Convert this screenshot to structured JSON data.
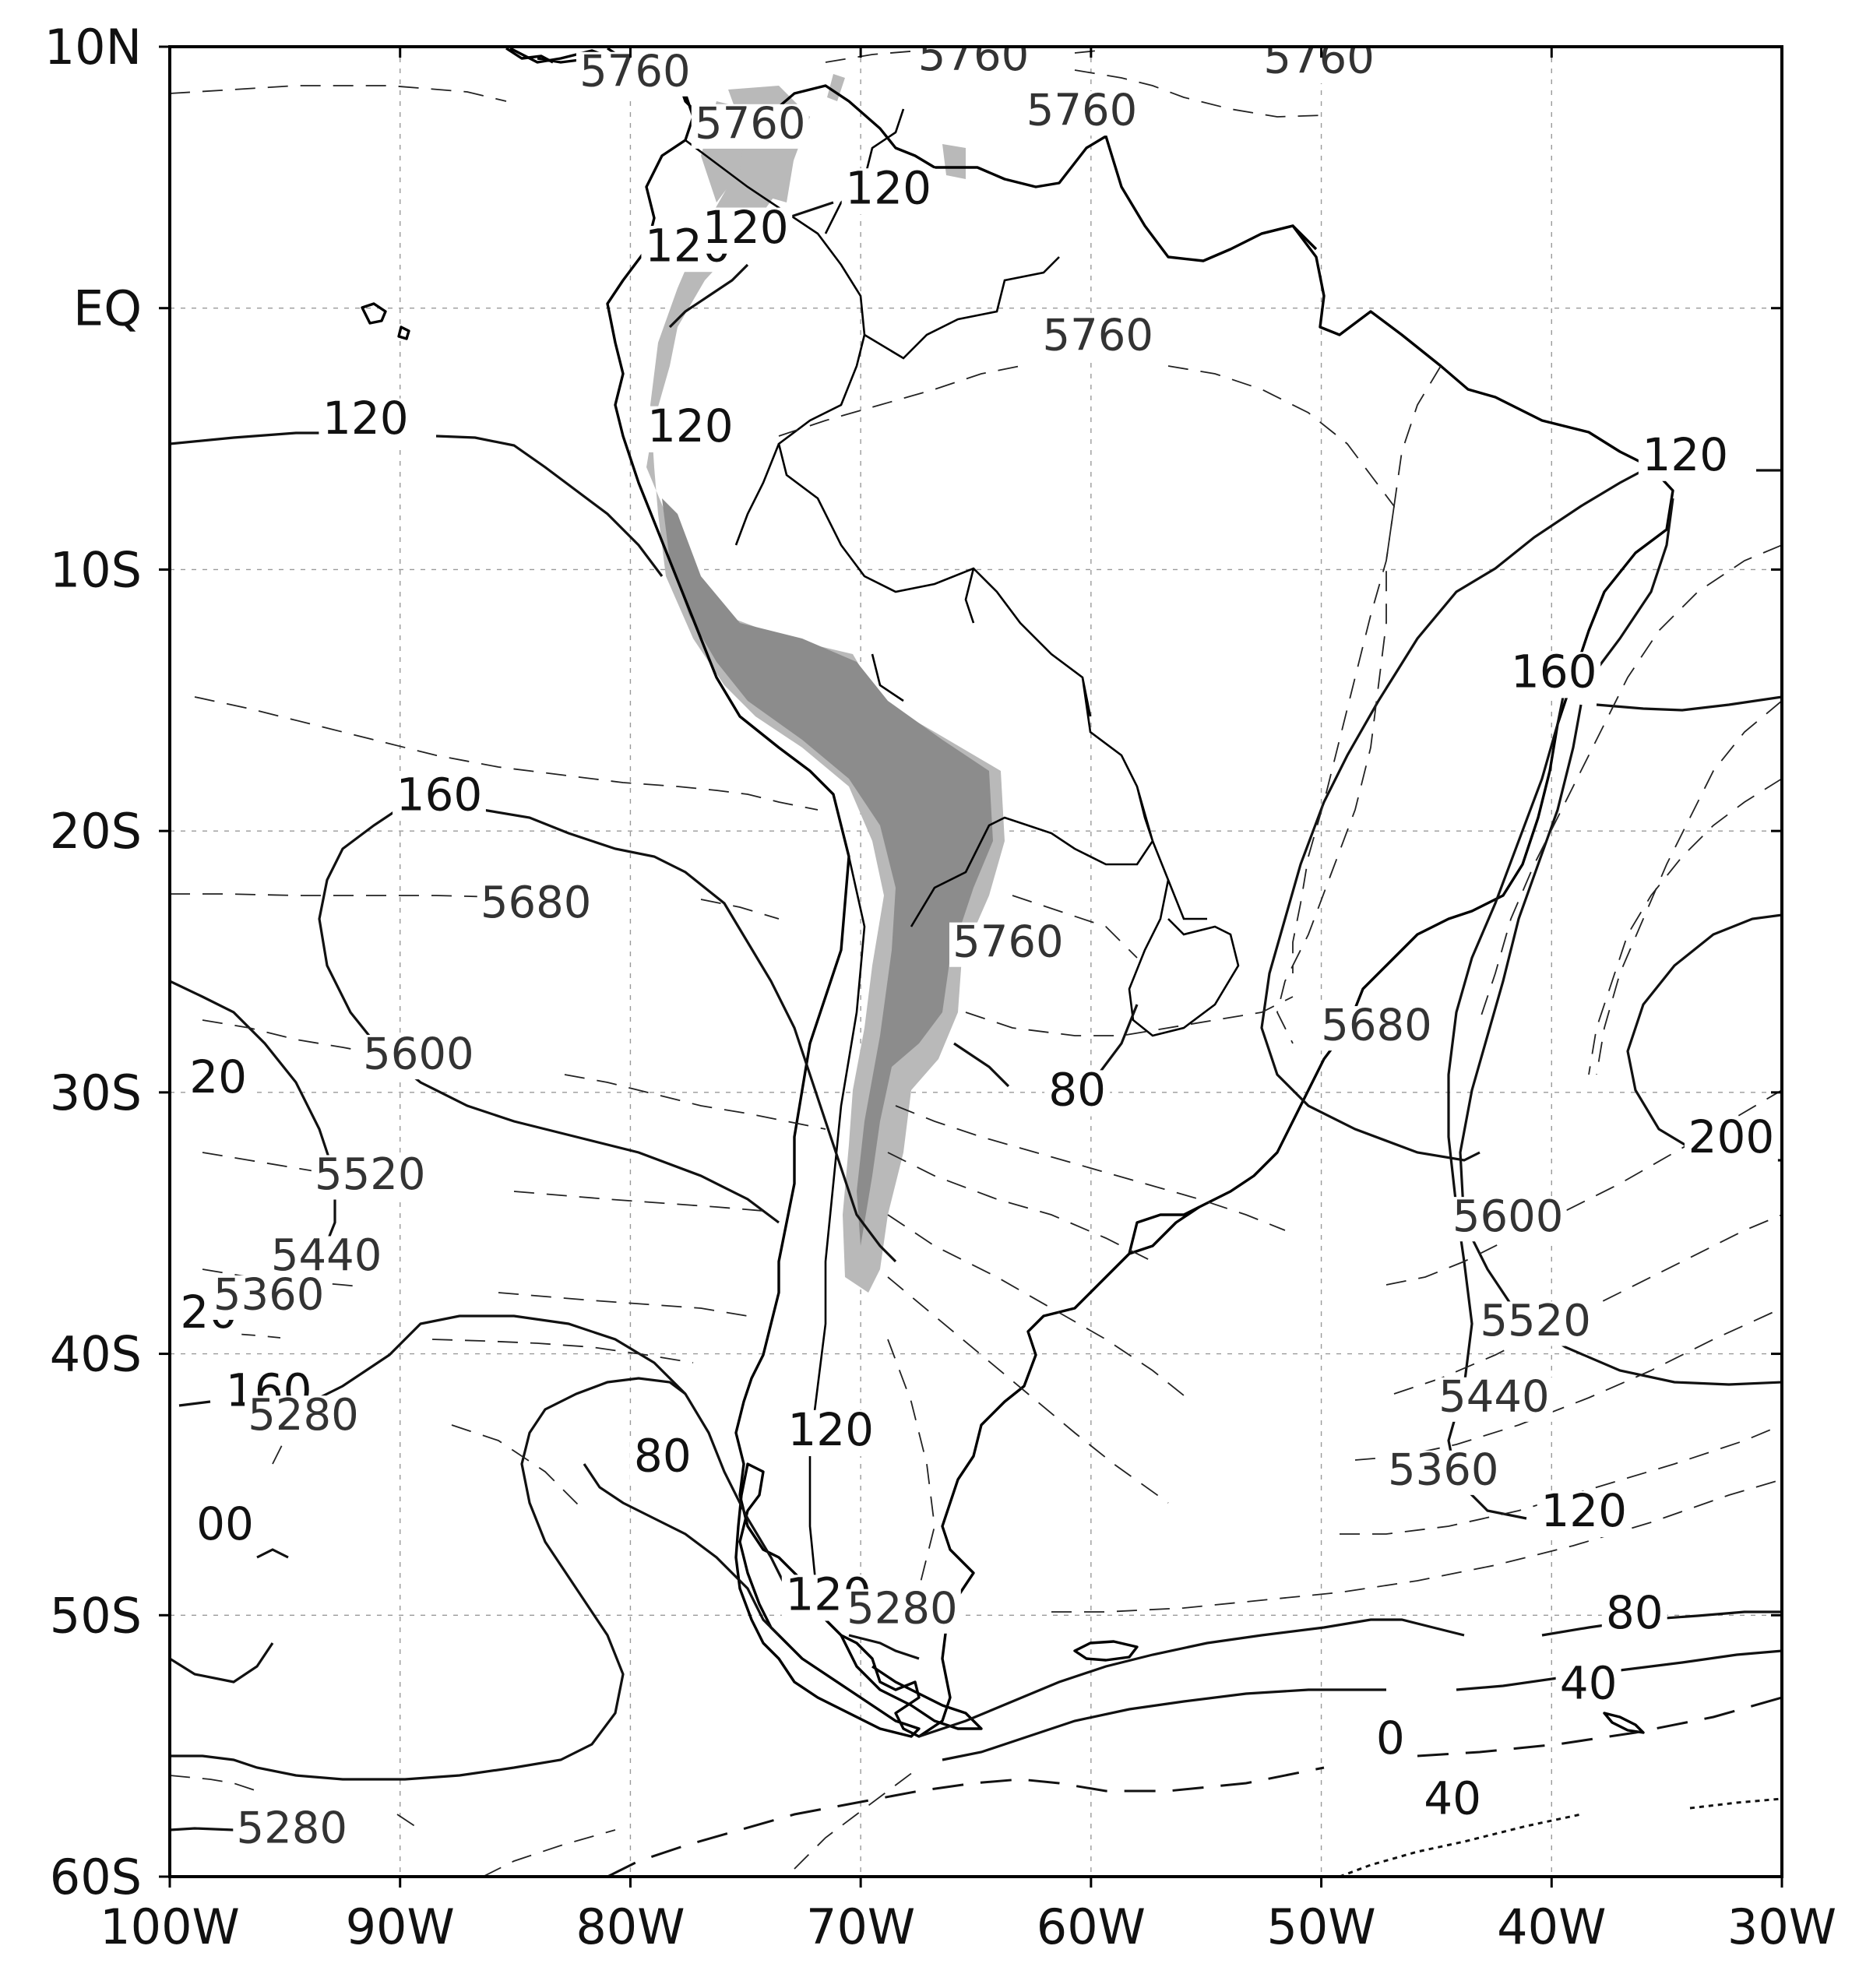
{
  "map": {
    "lon_ticks": [
      "100W",
      "90W",
      "80W",
      "70W",
      "60W",
      "50W",
      "40W",
      "30W"
    ],
    "lat_ticks": [
      "10N",
      "EQ",
      "10S",
      "20S",
      "30S",
      "40S",
      "50S",
      "60S"
    ],
    "extent": {
      "lon_min": -100,
      "lon_max": -30,
      "lat_min": -60,
      "lat_max": 10
    },
    "shading_color": "#8c8c8c",
    "shading_light_color": "#b9b9b9",
    "solid_contour_labels": [
      {
        "text": "120",
        "lon": -91.5,
        "lat": -4.8
      },
      {
        "text": "120",
        "lon": -77.5,
        "lat": 1.8
      },
      {
        "text": "120",
        "lon": -75.0,
        "lat": 2.5
      },
      {
        "text": "120",
        "lon": -77.4,
        "lat": -5.1
      },
      {
        "text": "120",
        "lon": -68.8,
        "lat": 4.0
      },
      {
        "text": "120",
        "lon": -34.2,
        "lat": -6.2
      },
      {
        "text": "160",
        "lon": -39.9,
        "lat": -14.5
      },
      {
        "text": "160",
        "lon": -88.3,
        "lat": -19.2
      },
      {
        "text": "200",
        "lon": -32.2,
        "lat": -32.3
      },
      {
        "text": "80",
        "lon": -60.6,
        "lat": -30.5
      },
      {
        "text": "20",
        "lon": -97.9,
        "lat": -30.0
      },
      {
        "text": "20",
        "lon": -98.3,
        "lat": -39.0
      },
      {
        "text": "160",
        "lon": -95.7,
        "lat": -42.0
      },
      {
        "text": "120",
        "lon": -71.3,
        "lat": -43.5
      },
      {
        "text": "80",
        "lon": -78.6,
        "lat": -44.5
      },
      {
        "text": "00",
        "lon": -97.6,
        "lat": -47.1
      },
      {
        "text": "120",
        "lon": -71.4,
        "lat": -49.8
      },
      {
        "text": "120",
        "lon": -38.6,
        "lat": -46.6
      },
      {
        "text": "80",
        "lon": -36.4,
        "lat": -50.5
      },
      {
        "text": "40",
        "lon": -38.4,
        "lat": -53.2
      },
      {
        "text": "0",
        "lon": -47.0,
        "lat": -55.3
      },
      {
        "text": "40",
        "lon": -44.3,
        "lat": -57.6
      }
    ],
    "dashed_contour_labels": [
      {
        "text": "5760",
        "lon": -79.8,
        "lat": 8.5
      },
      {
        "text": "5760",
        "lon": -74.8,
        "lat": 6.5
      },
      {
        "text": "5760",
        "lon": -65.1,
        "lat": 9.1
      },
      {
        "text": "5760",
        "lon": -50.1,
        "lat": 9.0
      },
      {
        "text": "5760",
        "lon": -60.4,
        "lat": 7.0
      },
      {
        "text": "5760",
        "lon": -59.7,
        "lat": -1.6
      },
      {
        "text": "5680",
        "lon": -84.1,
        "lat": -23.3
      },
      {
        "text": "5760",
        "lon": -63.6,
        "lat": -24.8
      },
      {
        "text": "5680",
        "lon": -47.6,
        "lat": -28.0
      },
      {
        "text": "5600",
        "lon": -89.2,
        "lat": -29.1
      },
      {
        "text": "5520",
        "lon": -91.3,
        "lat": -33.7
      },
      {
        "text": "5600",
        "lon": -41.9,
        "lat": -35.3
      },
      {
        "text": "5440",
        "lon": -93.2,
        "lat": -36.8
      },
      {
        "text": "5360",
        "lon": -95.7,
        "lat": -38.3
      },
      {
        "text": "5520",
        "lon": -40.7,
        "lat": -39.3
      },
      {
        "text": "5280",
        "lon": -94.2,
        "lat": -42.9
      },
      {
        "text": "5440",
        "lon": -42.5,
        "lat": -42.2
      },
      {
        "text": "5360",
        "lon": -44.7,
        "lat": -45.0
      },
      {
        "text": "5280",
        "lon": -68.2,
        "lat": -50.3
      },
      {
        "text": "5280",
        "lon": -94.7,
        "lat": -58.7
      }
    ]
  }
}
